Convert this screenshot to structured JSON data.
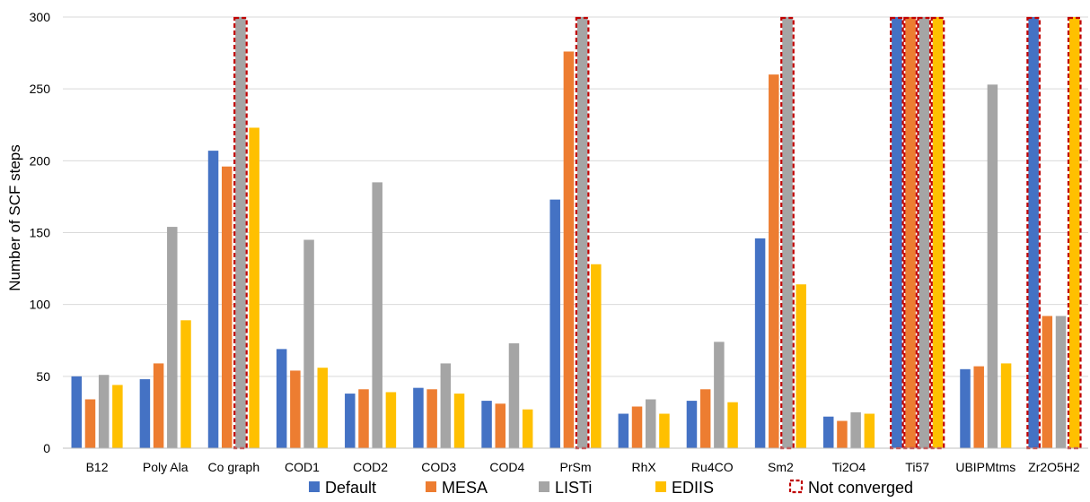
{
  "chart_data": {
    "type": "bar",
    "ylabel": "Number of SCF steps",
    "xlabel": "",
    "title": "",
    "ylim": [
      0,
      300
    ],
    "yticks": [
      0,
      50,
      100,
      150,
      200,
      250,
      300
    ],
    "grid": true,
    "legend_position": "bottom",
    "categories": [
      "B12",
      "Poly Ala",
      "Co graph",
      "COD1",
      "COD2",
      "COD3",
      "COD4",
      "PrSm",
      "RhX",
      "Ru4CO",
      "Sm2",
      "Ti2O4",
      "Ti57",
      "UBIPMtms",
      "Zr2O5H2"
    ],
    "series": [
      {
        "name": "Default",
        "color": "#4472C4",
        "values": [
          50,
          48,
          207,
          69,
          38,
          42,
          33,
          173,
          24,
          33,
          146,
          22,
          300,
          55,
          300
        ],
        "not_converged": [
          false,
          false,
          false,
          false,
          false,
          false,
          false,
          false,
          false,
          false,
          false,
          false,
          true,
          false,
          true
        ]
      },
      {
        "name": "MESA",
        "color": "#ED7D31",
        "values": [
          34,
          59,
          196,
          54,
          41,
          41,
          31,
          276,
          29,
          41,
          260,
          19,
          300,
          57,
          92
        ],
        "not_converged": [
          false,
          false,
          false,
          false,
          false,
          false,
          false,
          false,
          false,
          false,
          false,
          false,
          true,
          false,
          false
        ]
      },
      {
        "name": "LISTi",
        "color": "#A5A5A5",
        "values": [
          51,
          154,
          300,
          145,
          185,
          59,
          73,
          300,
          34,
          74,
          300,
          25,
          300,
          253,
          92
        ],
        "not_converged": [
          false,
          false,
          true,
          false,
          false,
          false,
          false,
          true,
          false,
          false,
          true,
          false,
          true,
          false,
          false
        ]
      },
      {
        "name": "EDIIS",
        "color": "#FFC000",
        "values": [
          44,
          89,
          223,
          56,
          39,
          38,
          27,
          128,
          24,
          32,
          114,
          24,
          300,
          59,
          300
        ],
        "not_converged": [
          false,
          false,
          false,
          false,
          false,
          false,
          false,
          false,
          false,
          false,
          false,
          false,
          true,
          false,
          true
        ]
      }
    ],
    "not_converged_label": "Not converged",
    "not_converged_color": "#C00000"
  }
}
